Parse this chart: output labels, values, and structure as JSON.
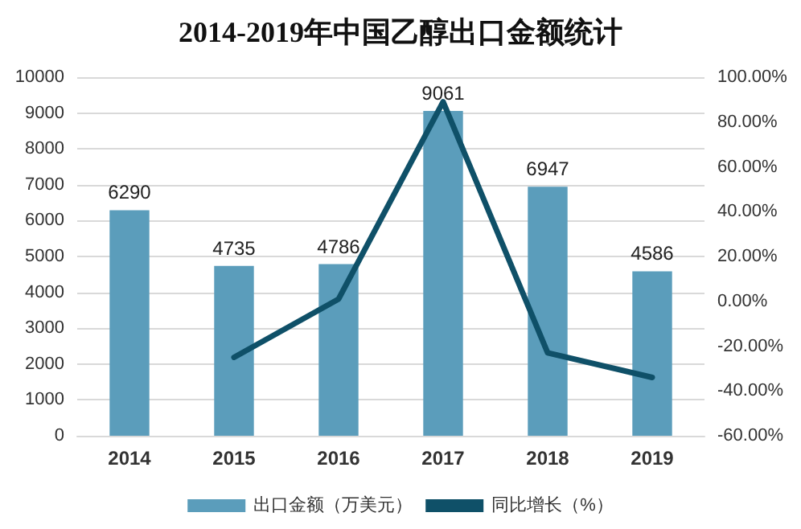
{
  "chart_data": {
    "type": "bar",
    "title": "2014-2019年中国乙醇出口金额统计",
    "categories": [
      "2014",
      "2015",
      "2016",
      "2017",
      "2018",
      "2019"
    ],
    "series": [
      {
        "name": "出口金额（万美元）",
        "color": "#5b9dbb",
        "values": [
          6290,
          4735,
          4786,
          9061,
          6947,
          4586
        ],
        "value_labels": [
          "6290",
          "4735",
          "4786",
          "9061",
          "6947",
          "4586"
        ]
      },
      {
        "name": "同比增长（%）",
        "type": "line",
        "axis": "y2",
        "color": "#0f5068",
        "values": [
          null,
          -25,
          1,
          89,
          -23,
          -34
        ]
      }
    ],
    "ylim": [
      0,
      10000
    ],
    "yticks": [
      0,
      1000,
      2000,
      3000,
      4000,
      5000,
      6000,
      7000,
      8000,
      9000,
      10000
    ],
    "y2lim": [
      -60,
      100
    ],
    "y2ticks": [
      {
        "value": -60,
        "label": "-60.00%"
      },
      {
        "value": -40,
        "label": "-40.00%"
      },
      {
        "value": -20,
        "label": "-20.00%"
      },
      {
        "value": 0,
        "label": "0.00%"
      },
      {
        "value": 20,
        "label": "20.00%"
      },
      {
        "value": 40,
        "label": "40.00%"
      },
      {
        "value": 60,
        "label": "60.00%"
      },
      {
        "value": 80,
        "label": "80.00%"
      },
      {
        "value": 100,
        "label": "100.00%"
      }
    ],
    "grid": "y",
    "legend": "bottom",
    "marker": "none",
    "line_style": "solid"
  }
}
